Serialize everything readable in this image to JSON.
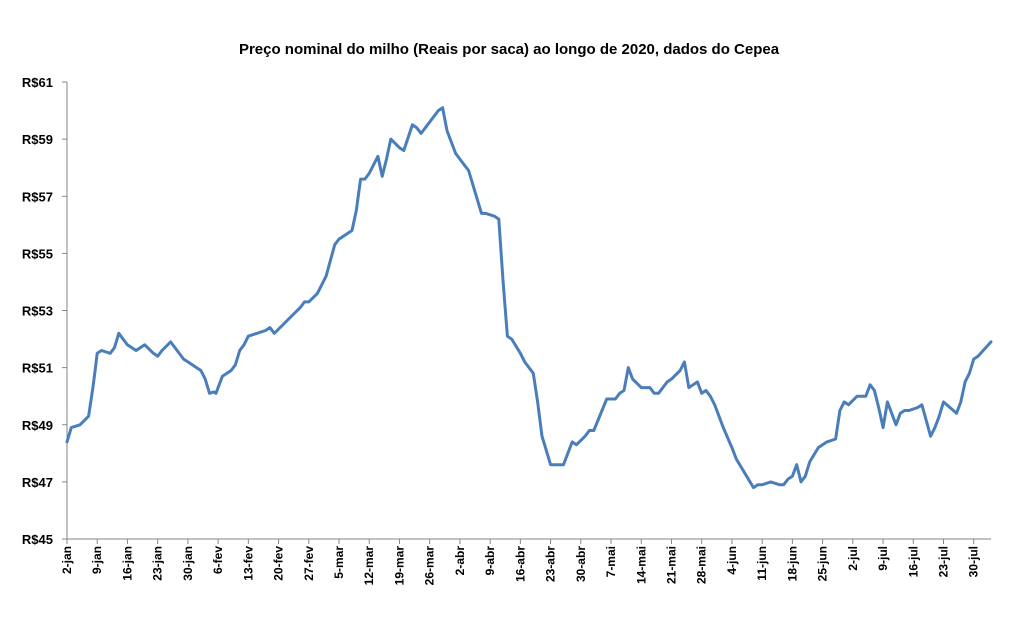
{
  "chart_data": {
    "type": "line",
    "title": "Preço nominal do milho (Reais por saca) ao longo de 2020, dados do Cepea",
    "xlabel": "",
    "ylabel": "",
    "ylim": [
      45,
      61
    ],
    "yticks": [
      45,
      47,
      49,
      51,
      53,
      55,
      57,
      59,
      61
    ],
    "ytick_labels": [
      "R$45",
      "R$47",
      "R$49",
      "R$51",
      "R$53",
      "R$55",
      "R$57",
      "R$59",
      "R$61"
    ],
    "grid": false,
    "line_color": "#4A7EBB",
    "xlim": [
      0,
      214
    ],
    "xtick_labels": [
      "2-jan",
      "9-jan",
      "16-jan",
      "23-jan",
      "30-jan",
      "6-fev",
      "13-fev",
      "20-fev",
      "27-fev",
      "5-mar",
      "12-mar",
      "19-mar",
      "26-mar",
      "2-abr",
      "9-abr",
      "16-abr",
      "23-abr",
      "30-abr",
      "7-mai",
      "14-mai",
      "21-mai",
      "28-mai",
      "4-jun",
      "11-jun",
      "18-jun",
      "25-jun",
      "2-jul",
      "9-jul",
      "16-jul",
      "23-jul",
      "30-jul"
    ],
    "xtick_days": [
      0,
      7,
      14,
      21,
      28,
      35,
      42,
      49,
      56,
      63,
      70,
      77,
      84,
      91,
      98,
      105,
      112,
      119,
      126,
      133,
      140,
      147,
      154,
      161,
      168,
      175,
      182,
      189,
      196,
      203,
      210
    ],
    "series": [
      {
        "name": "Preço nominal do milho",
        "x": [
          0,
          1,
          3,
          5,
          6,
          6.5,
          7,
          8,
          10,
          11,
          12,
          13,
          14,
          16,
          18,
          20,
          21,
          22,
          24,
          27,
          28,
          29,
          30,
          31,
          32,
          33,
          34,
          34.5,
          35,
          36,
          38,
          39,
          40,
          41,
          42,
          44,
          46,
          47,
          48,
          50,
          52,
          54,
          55,
          56,
          58,
          60,
          62,
          63,
          64,
          66,
          67,
          68,
          69,
          70,
          72,
          73,
          74,
          75,
          77,
          78,
          80,
          81,
          82,
          83,
          84,
          85,
          86,
          87,
          88,
          89,
          90,
          91,
          92,
          93,
          94,
          96,
          97,
          99,
          100,
          101,
          102,
          103,
          105,
          106,
          108,
          109,
          110,
          112,
          113,
          114,
          115,
          117,
          118,
          120,
          121,
          122,
          125,
          127,
          128,
          129,
          130,
          131,
          133,
          135,
          136,
          137,
          139,
          140,
          142,
          143,
          144,
          146,
          147,
          148,
          149,
          150,
          152,
          154,
          155,
          157,
          159,
          160,
          161,
          163,
          165,
          166,
          167,
          168,
          169,
          170,
          171,
          172,
          174,
          175,
          176,
          178,
          179,
          180,
          181,
          183,
          185,
          186,
          187,
          188,
          189,
          190,
          192,
          193,
          194,
          195,
          197,
          198,
          200,
          201,
          202,
          203,
          206,
          207,
          208,
          209,
          210,
          211,
          214
        ],
        "values": [
          48.4,
          48.9,
          49.0,
          49.3,
          50.3,
          50.9,
          51.5,
          51.6,
          51.5,
          51.7,
          52.2,
          52.0,
          51.8,
          51.6,
          51.8,
          51.5,
          51.4,
          51.6,
          51.9,
          51.3,
          51.2,
          51.1,
          51.0,
          50.9,
          50.6,
          50.1,
          50.15,
          50.1,
          50.3,
          50.7,
          50.9,
          51.1,
          51.6,
          51.8,
          52.1,
          52.2,
          52.3,
          52.4,
          52.2,
          52.5,
          52.8,
          53.1,
          53.3,
          53.3,
          53.6,
          54.2,
          55.3,
          55.5,
          55.6,
          55.8,
          56.5,
          57.6,
          57.6,
          57.8,
          58.4,
          57.7,
          58.3,
          59.0,
          58.7,
          58.6,
          59.5,
          59.4,
          59.2,
          59.4,
          59.6,
          59.8,
          60.0,
          60.1,
          59.3,
          58.9,
          58.5,
          58.3,
          58.1,
          57.9,
          57.4,
          56.4,
          56.4,
          56.3,
          56.2,
          54.0,
          52.1,
          52.0,
          51.5,
          51.2,
          50.8,
          49.8,
          48.6,
          47.6,
          47.6,
          47.6,
          47.6,
          48.4,
          48.3,
          48.6,
          48.8,
          48.8,
          49.9,
          49.9,
          50.1,
          50.2,
          51.0,
          50.6,
          50.3,
          50.3,
          50.1,
          50.1,
          50.5,
          50.6,
          50.9,
          51.2,
          50.3,
          50.5,
          50.1,
          50.2,
          50.0,
          49.7,
          48.9,
          48.2,
          47.8,
          47.3,
          46.8,
          46.9,
          46.9,
          47.0,
          46.9,
          46.9,
          47.1,
          47.2,
          47.6,
          47.0,
          47.2,
          47.7,
          48.2,
          48.3,
          48.4,
          48.5,
          49.5,
          49.8,
          49.7,
          50.0,
          50.0,
          50.4,
          50.2,
          49.6,
          48.9,
          49.8,
          49.0,
          49.4,
          49.5,
          49.5,
          49.6,
          49.7,
          48.6,
          48.9,
          49.3,
          49.8,
          49.4,
          49.8,
          50.5,
          50.8,
          51.3,
          51.4,
          51.9
        ]
      }
    ]
  }
}
